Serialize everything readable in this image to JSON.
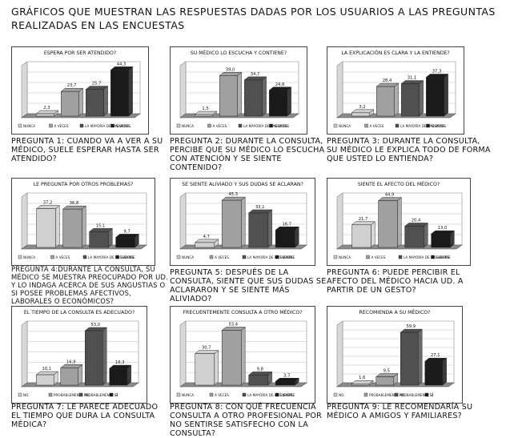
{
  "page": {
    "title": "GRÁFICOS QUE MUESTRAN LAS RESPUESTAS DADAS POR LOS USUARIOS A LAS PREGUNTAS REALIZADAS EN LAS ENCUESTAS"
  },
  "colors": {
    "bar_light": "#d0d0d0",
    "bar_mid": "#a0a0a0",
    "bar_dark": "#505050",
    "bar_black": "#1a1a1a"
  },
  "chart_data": [
    {
      "type": "bar",
      "title": "ESPERA POR SER ATENDIDO?",
      "categories": [
        "NUNCA",
        "A VECES",
        "LA MAYORÍA DE LAS VECES",
        "SIEMPRE"
      ],
      "values": [
        2.3,
        23.7,
        25.7,
        44.3
      ],
      "value_labels": [
        "2,3",
        "23,7",
        "25,7",
        "44,3"
      ],
      "ylim": [
        0,
        50
      ],
      "grid": true,
      "legend": "bottom",
      "question": "PREGUNTA 1: CUANDO VA A VER A SU MÉDICO, SUELE ESPERAR HASTA SER ATENDIDO?"
    },
    {
      "type": "bar",
      "title": "SU MÉDICO LO ESCUCHA Y CONTIENE?",
      "categories": [
        "NUNCA",
        "A VECES",
        "LA MAYORÍA DE LAS VECES",
        "SIEMPRE"
      ],
      "values": [
        1.5,
        39.0,
        34.7,
        24.8
      ],
      "value_labels": [
        "1,5",
        "39,0",
        "34,7",
        "24,8"
      ],
      "ylim": [
        0,
        50
      ],
      "grid": true,
      "legend": "bottom",
      "question": "PREGUNTA 2: DURANTE LA CONSULTA, PERCIBE QUE SU MÉDICO LO ESCUCHA CON ATENCIÓN Y SE SIENTE CONTENIDO?"
    },
    {
      "type": "bar",
      "title": "LA EXPLICACIÓN ES CLARA Y LA ENTIENDE?",
      "categories": [
        "NUNCA",
        "A VECES",
        "LA MAYORÍA DE LAS VECES",
        "SIEMPRE"
      ],
      "values": [
        3.2,
        28.4,
        31.1,
        37.3
      ],
      "value_labels": [
        "3,2",
        "28,4",
        "31,1",
        "37,3"
      ],
      "ylim": [
        0,
        50
      ],
      "grid": true,
      "legend": "bottom",
      "question": "PREGUNTA 3: DURANTE LA CONSULTA, SU MÉDICO LE EXPLICA TODO DE FORMA QUE USTED LO ENTIENDA?"
    },
    {
      "type": "bar",
      "title": "LE PREGUNTA POR OTROS PROBLEMAS?",
      "categories": [
        "NUNCA",
        "A VECES",
        "LA MAYORÍA DE LAS VECES",
        "SIEMPRE"
      ],
      "values": [
        37.2,
        36.8,
        15.1,
        9.7
      ],
      "value_labels": [
        "37,2",
        "36,8",
        "15,1",
        "9,7"
      ],
      "ylim": [
        0,
        50
      ],
      "grid": true,
      "legend": "bottom",
      "question": "PREGUNTA 4:DURANTE LA CONSULTA, SU MÉDICO SE MUESTRA PREOCUPADO POR UD. Y LO INDAGA ACERCA DE SUS ANGUSTIAS O SI POSEE PROBLEMAS AFECTIVOS, LABORALES O ECONÓMICOS?"
    },
    {
      "type": "bar",
      "title": "SE SIENTE ALIVIADO Y SUS DUDAS SE ACLARAN?",
      "categories": [
        "NUNCA",
        "A VECES",
        "LA MAYORÍA DE LAS VECES",
        "SIEMPRE"
      ],
      "values": [
        4.7,
        45.3,
        33.1,
        16.7
      ],
      "value_labels": [
        "4,7",
        "45,3",
        "33,1",
        "16,7"
      ],
      "ylim": [
        0,
        50
      ],
      "grid": true,
      "legend": "bottom",
      "question": "PREGUNTA 5: DESPUÉS DE LA CONSULTA, SIENTE QUE SUS DUDAS SE ACLARARON Y SE SIENTE MÁS ALIVIADO?"
    },
    {
      "type": "bar",
      "title": "SIENTE EL AFECTO DEL MÉDICO?",
      "categories": [
        "NUNCA",
        "A VECES",
        "LA MAYORÍA DE LAS VECES",
        "SIEMPRE"
      ],
      "values": [
        21.7,
        44.9,
        20.4,
        13.0
      ],
      "value_labels": [
        "21,7",
        "44,9",
        "20,4",
        "13,0"
      ],
      "ylim": [
        0,
        50
      ],
      "grid": true,
      "legend": "bottom",
      "question": "PREGUNTA 6: PUEDE PERCIBIR EL AFECTO DEL MÉDICO HACIA UD. A PARTIR DE UN GESTO?"
    },
    {
      "type": "bar",
      "title": "EL TIEMPO DE LA CONSULTA ES ADECUADO?",
      "categories": [
        "NO",
        "PROBABLEMENTE NO",
        "PROBABLEMENTE SÍ",
        "SÍ"
      ],
      "values": [
        10.1,
        16.9,
        53.0,
        16.3
      ],
      "value_labels": [
        "10,1",
        "16,9",
        "53,0",
        "16,3"
      ],
      "ylim": [
        0,
        60
      ],
      "grid": true,
      "legend": "bottom",
      "question": "PREGUNTA 7: LE PARECE ADECUADO EL TIEMPO QUE DURA LA CONSULTA MÉDICA?"
    },
    {
      "type": "bar",
      "title": "FRECUENTEMENTE CONSULTA A OTRO MÉDICO?",
      "categories": [
        "NUNCA",
        "A VECES",
        "LA MAYORÍA DE LAS VECES",
        "SIEMPRE"
      ],
      "values": [
        30.7,
        53.4,
        9.8,
        3.7
      ],
      "value_labels": [
        "30,7",
        "53,4",
        "9,8",
        "3,7"
      ],
      "ylim": [
        0,
        60
      ],
      "grid": true,
      "legend": "bottom",
      "question": "PREGUNTA 8: CON QUÉ FRECUENCIA CONSULTA A OTRO PROFESIONAL POR NO SENTIRSE SATISFECHO CON LA CONSULTA?"
    },
    {
      "type": "bar",
      "title": "RECOMIENDA A SU MÉDICO?",
      "categories": [
        "NO",
        "PROBABLEMENTE NO",
        "PROBABLEMENTE SÍ",
        "SÍ"
      ],
      "values": [
        1.6,
        9.5,
        59.9,
        27.1
      ],
      "value_labels": [
        "1,6",
        "9,5",
        "59,9",
        "27,1"
      ],
      "ylim": [
        0,
        70
      ],
      "grid": true,
      "legend": "bottom",
      "question": "PREGUNTA 9: LE RECOMENDARÍA SU MÉDICO A AMIGOS Y FAMILIARES?"
    }
  ]
}
